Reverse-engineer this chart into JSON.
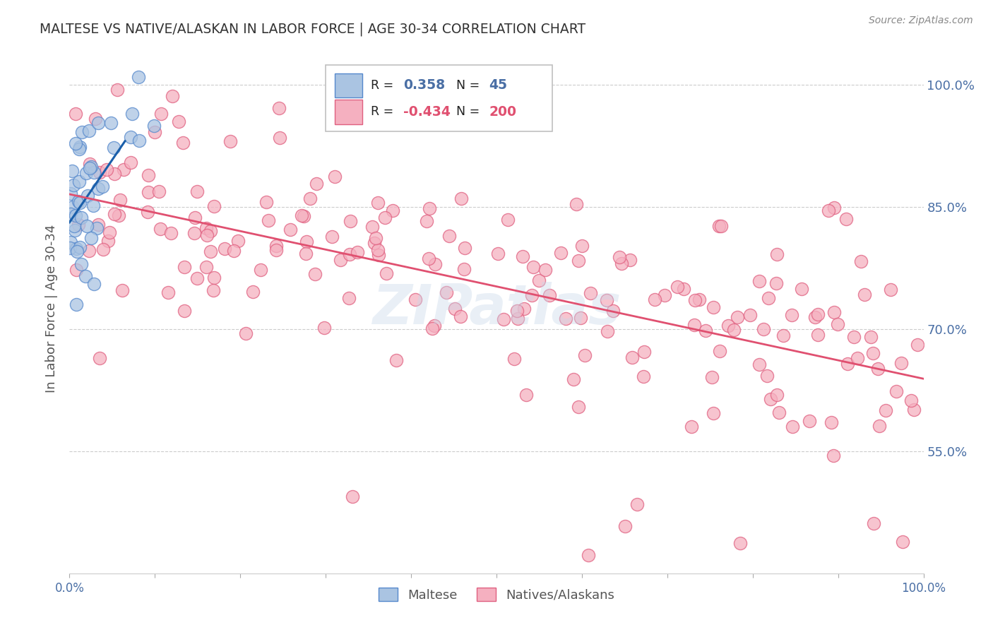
{
  "title": "MALTESE VS NATIVE/ALASKAN IN LABOR FORCE | AGE 30-34 CORRELATION CHART",
  "source": "Source: ZipAtlas.com",
  "ylabel": "In Labor Force | Age 30-34",
  "xmin": 0.0,
  "xmax": 1.0,
  "ymin": 0.4,
  "ymax": 1.05,
  "yticks": [
    0.55,
    0.7,
    0.85,
    1.0
  ],
  "ytick_labels": [
    "55.0%",
    "70.0%",
    "85.0%",
    "100.0%"
  ],
  "xticks": [
    0.0,
    0.1,
    0.2,
    0.3,
    0.4,
    0.5,
    0.6,
    0.7,
    0.8,
    0.9,
    1.0
  ],
  "xtick_labels": [
    "0.0%",
    "",
    "",
    "",
    "",
    "",
    "",
    "",
    "",
    "",
    "100.0%"
  ],
  "maltese_color": "#aac4e2",
  "maltese_edge_color": "#5588cc",
  "native_color": "#f5b0c0",
  "native_edge_color": "#e06080",
  "maltese_R": 0.358,
  "maltese_N": 45,
  "native_R": -0.434,
  "native_N": 200,
  "blue_line_color": "#1a5faa",
  "pink_line_color": "#e05070",
  "watermark": "ZIPatlas",
  "background_color": "#ffffff",
  "grid_color": "#cccccc",
  "axis_label_color": "#4a6fa5",
  "title_color": "#333333",
  "legend_text_color": "#222222"
}
